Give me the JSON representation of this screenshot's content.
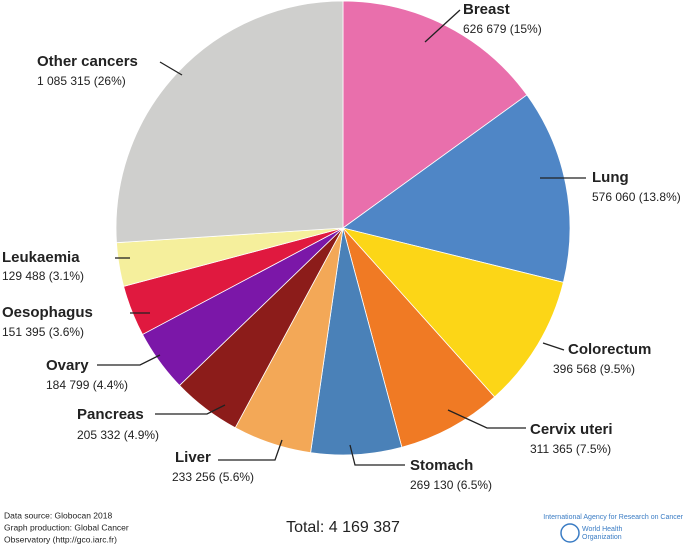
{
  "chart_data": {
    "type": "pie",
    "categories": [
      "Breast",
      "Lung",
      "Colorectum",
      "Cervix uteri",
      "Stomach",
      "Liver",
      "Pancreas",
      "Ovary",
      "Oesophagus",
      "Leukaemia",
      "Other cancers"
    ],
    "values": [
      626679,
      576060,
      396568,
      311365,
      269130,
      233256,
      205332,
      184799,
      151395,
      129488,
      1085315
    ],
    "value_labels": [
      "626 679 (15%)",
      "576 060 (13.8%)",
      "396 568 (9.5%)",
      "311 365 (7.5%)",
      "269 130 (6.5%)",
      "233 256 (5.6%)",
      "205 332 (4.9%)",
      "184 799 (4.4%)",
      "151 395 (3.6%)",
      "129 488 (3.1%)",
      "1 085 315 (26%)"
    ],
    "colors": [
      "#e96fac",
      "#4f86c6",
      "#fcd617",
      "#f07a24",
      "#4a81b8",
      "#f3a857",
      "#8c1c1a",
      "#7b17a8",
      "#e0193f",
      "#f5ef9c",
      "#cfcfcd"
    ],
    "total_label": "Total: 4 169 387",
    "source_lines": [
      "Data source: Globocan 2018",
      "Graph production: Global Cancer",
      "Observatory (http://gco.iarc.fr)"
    ],
    "logo_texts": [
      "International Agency for Research on Cancer",
      "World Health",
      "Organization"
    ]
  }
}
